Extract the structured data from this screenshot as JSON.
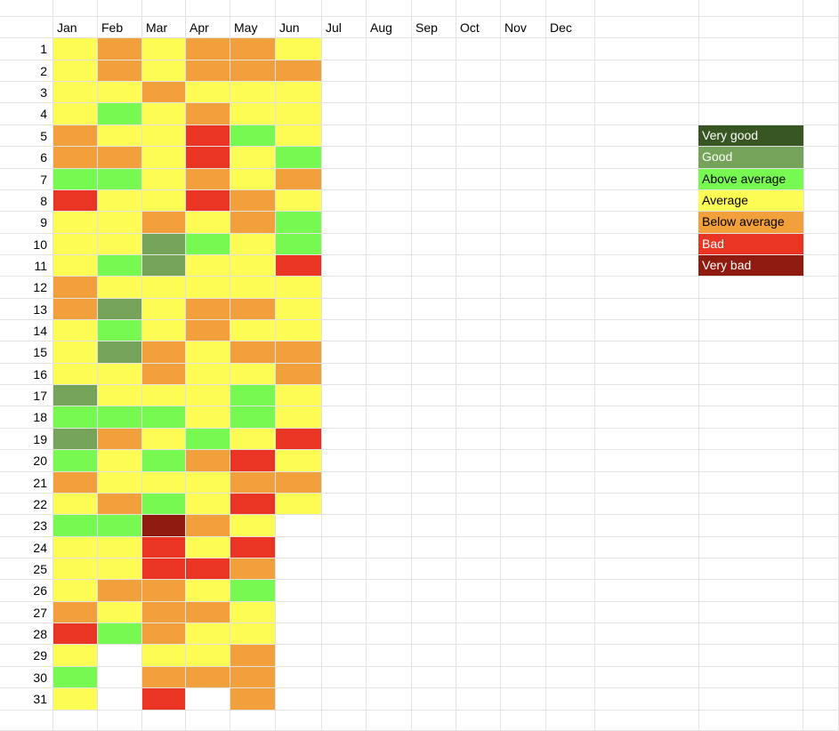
{
  "months": [
    "Jan",
    "Feb",
    "Mar",
    "Apr",
    "May",
    "Jun",
    "Jul",
    "Aug",
    "Sep",
    "Oct",
    "Nov",
    "Dec"
  ],
  "days": [
    "1",
    "2",
    "3",
    "4",
    "5",
    "6",
    "7",
    "8",
    "9",
    "10",
    "11",
    "12",
    "13",
    "14",
    "15",
    "16",
    "17",
    "18",
    "19",
    "20",
    "21",
    "22",
    "23",
    "24",
    "25",
    "26",
    "27",
    "28",
    "29",
    "30",
    "31"
  ],
  "ratings": {
    "vg": {
      "label": "Very good",
      "color": "#375623",
      "text_color": "#ffffff"
    },
    "g": {
      "label": "Good",
      "color": "#76a35a",
      "text_color": "#ffffff"
    },
    "ag": {
      "label": "Above average",
      "color": "#77f952",
      "text_color": "#000000"
    },
    "a": {
      "label": "Average",
      "color": "#fdfc55",
      "text_color": "#000000"
    },
    "ba": {
      "label": "Below average",
      "color": "#f1a03c",
      "text_color": "#000000"
    },
    "b": {
      "label": "Bad",
      "color": "#ea3525",
      "text_color": "#ffffff"
    },
    "vb": {
      "label": "Very bad",
      "color": "#8f1b10",
      "text_color": "#ffffff"
    }
  },
  "legend_order": [
    "vg",
    "g",
    "ag",
    "a",
    "ba",
    "b",
    "vb"
  ],
  "heatmap": {
    "Jan": [
      "a",
      "a",
      "a",
      "a",
      "ba",
      "ba",
      "ag",
      "b",
      "a",
      "a",
      "a",
      "ba",
      "ba",
      "a",
      "a",
      "a",
      "g",
      "ag",
      "g",
      "ag",
      "ba",
      "a",
      "ag",
      "a",
      "a",
      "a",
      "ba",
      "b",
      "a",
      "ag",
      "a"
    ],
    "Feb": [
      "ba",
      "ba",
      "a",
      "ag",
      "a",
      "ba",
      "ag",
      "a",
      "a",
      "a",
      "ag",
      "a",
      "g",
      "ag",
      "g",
      "a",
      "a",
      "ag",
      "ba",
      "a",
      "a",
      "ba",
      "ag",
      "a",
      "a",
      "ba",
      "a",
      "ag"
    ],
    "Mar": [
      "a",
      "a",
      "ba",
      "a",
      "a",
      "a",
      "a",
      "a",
      "ba",
      "g",
      "g",
      "a",
      "a",
      "a",
      "ba",
      "ba",
      "a",
      "ag",
      "a",
      "ag",
      "a",
      "ag",
      "vb",
      "b",
      "b",
      "ba",
      "ba",
      "ba",
      "a",
      "ba",
      "b"
    ],
    "Apr": [
      "ba",
      "ba",
      "a",
      "ba",
      "b",
      "b",
      "ba",
      "b",
      "a",
      "ag",
      "a",
      "a",
      "ba",
      "ba",
      "a",
      "a",
      "a",
      "a",
      "ag",
      "ba",
      "a",
      "a",
      "ba",
      "a",
      "b",
      "a",
      "ba",
      "a",
      "a",
      "ba"
    ],
    "May": [
      "ba",
      "ba",
      "a",
      "a",
      "ag",
      "a",
      "a",
      "ba",
      "ba",
      "a",
      "a",
      "a",
      "ba",
      "a",
      "ba",
      "a",
      "ag",
      "ag",
      "a",
      "b",
      "ba",
      "b",
      "a",
      "b",
      "ba",
      "ag",
      "a",
      "a",
      "ba",
      "ba",
      "ba"
    ],
    "Jun": [
      "a",
      "ba",
      "a",
      "a",
      "a",
      "ag",
      "ba",
      "a",
      "ag",
      "ag",
      "b",
      "a",
      "a",
      "a",
      "ba",
      "ba",
      "a",
      "a",
      "b",
      "a",
      "ba",
      "a"
    ]
  }
}
